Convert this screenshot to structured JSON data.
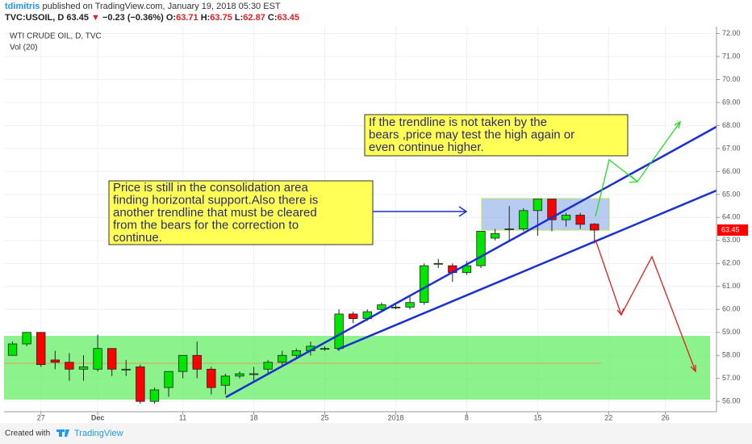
{
  "header": {
    "author": "tdimitris",
    "published": "published on TradingView.com, January 19, 2018 05:30 EST",
    "symbol": "TVC:USOIL, D",
    "change_arrow": "▼",
    "change": "−0.23 (−0.36%)",
    "ohlc_labels": [
      "O:",
      "H:",
      "L:",
      "C:"
    ]
  },
  "footer": {
    "created": "Created with",
    "brand": "TradingView"
  },
  "chart_data": {
    "type": "candlestick",
    "title": "WTI CRUDE OIL, D, TVC",
    "subtitle": "Vol (20)",
    "open": [
      58.0,
      58.5,
      59.0,
      57.8,
      57.7,
      57.4,
      57.4,
      58.3,
      57.4,
      57.5,
      56.0,
      56.6,
      57.3,
      58.0,
      57.4,
      56.7,
      57.1,
      57.2,
      57.4,
      57.7,
      58.0,
      58.2,
      58.3,
      58.3,
      59.8,
      59.6,
      60.0,
      60.1,
      60.1,
      60.3,
      62.0,
      61.9,
      61.6,
      61.9,
      63.1,
      63.5,
      63.5,
      64.3,
      64.8,
      63.9,
      64.1,
      63.71
    ],
    "high": [
      58.6,
      59.0,
      59.0,
      58.2,
      58.1,
      58.0,
      58.9,
      58.3,
      57.8,
      57.6,
      56.6,
      57.3,
      58.0,
      58.6,
      57.5,
      57.2,
      57.3,
      57.5,
      57.8,
      58.2,
      58.3,
      58.6,
      58.4,
      60.0,
      59.9,
      60.0,
      60.3,
      60.2,
      60.6,
      62.0,
      62.2,
      62.0,
      62.1,
      63.4,
      63.5,
      64.5,
      64.4,
      64.8,
      64.8,
      64.2,
      64.2,
      63.75
    ],
    "low": [
      58.0,
      58.4,
      57.5,
      57.4,
      56.9,
      56.9,
      57.3,
      57.1,
      57.1,
      55.9,
      55.9,
      56.2,
      57.0,
      57.0,
      56.3,
      56.3,
      57.0,
      56.9,
      57.2,
      57.5,
      57.9,
      58.0,
      58.2,
      58.2,
      59.4,
      59.5,
      59.9,
      60.0,
      60.0,
      60.2,
      61.8,
      61.2,
      61.5,
      61.8,
      63.0,
      63.0,
      63.4,
      63.2,
      63.4,
      63.6,
      63.5,
      62.87
    ],
    "close": [
      58.5,
      59.0,
      57.6,
      57.7,
      57.4,
      57.5,
      58.3,
      57.4,
      57.4,
      56.0,
      56.5,
      57.3,
      58.0,
      57.4,
      56.6,
      57.1,
      57.2,
      57.2,
      57.7,
      58.0,
      58.2,
      58.4,
      58.3,
      59.8,
      59.6,
      59.9,
      60.2,
      60.1,
      60.3,
      61.9,
      62.0,
      61.6,
      61.9,
      63.4,
      63.3,
      63.5,
      64.3,
      64.8,
      63.9,
      64.1,
      63.7,
      63.45
    ],
    "up_color": "#00e600",
    "down_color": "#ff0000",
    "xlim": [
      -0.6,
      49.6
    ],
    "xticks": [
      {
        "value": 2,
        "label": "27"
      },
      {
        "value": 6,
        "label": "Dec"
      },
      {
        "value": 12,
        "label": "11"
      },
      {
        "value": 17,
        "label": "18"
      },
      {
        "value": 22,
        "label": "25"
      },
      {
        "value": 27,
        "label": "2018"
      },
      {
        "value": 32,
        "label": "8"
      },
      {
        "value": 37,
        "label": "15"
      },
      {
        "value": 42,
        "label": "22"
      },
      {
        "value": 46,
        "label": "26"
      }
    ],
    "ylim": [
      55.55,
      72.3
    ],
    "yticks": [
      {
        "value": 56,
        "label": "56.00"
      },
      {
        "value": 57,
        "label": "57.00"
      },
      {
        "value": 58,
        "label": "58.00"
      },
      {
        "value": 59,
        "label": "59.00"
      },
      {
        "value": 60,
        "label": "60.00"
      },
      {
        "value": 61,
        "label": "61.00"
      },
      {
        "value": 62,
        "label": "62.00"
      },
      {
        "value": 63,
        "label": "63.00"
      },
      {
        "value": 64,
        "label": "64.00"
      },
      {
        "value": 65,
        "label": "65.00"
      },
      {
        "value": 66,
        "label": "66.00"
      },
      {
        "value": 67,
        "label": "67.00"
      },
      {
        "value": 68,
        "label": "68.00"
      },
      {
        "value": 69,
        "label": "69.00"
      },
      {
        "value": 70,
        "label": "70.00"
      },
      {
        "value": 71,
        "label": "71.00"
      },
      {
        "value": 72,
        "label": "72.00"
      }
    ],
    "grid": true,
    "annotations": [
      {
        "lines": [
          "Price is still in the consolidation area",
          "finding horizontal support.Also there is",
          "another trendline that must be cleared",
          "from the bears for the correction to",
          "continue."
        ]
      },
      {
        "lines": [
          "If the trendline is not taken by the",
          "bears ,price may test the high again or",
          "even continue higher."
        ]
      }
    ]
  }
}
